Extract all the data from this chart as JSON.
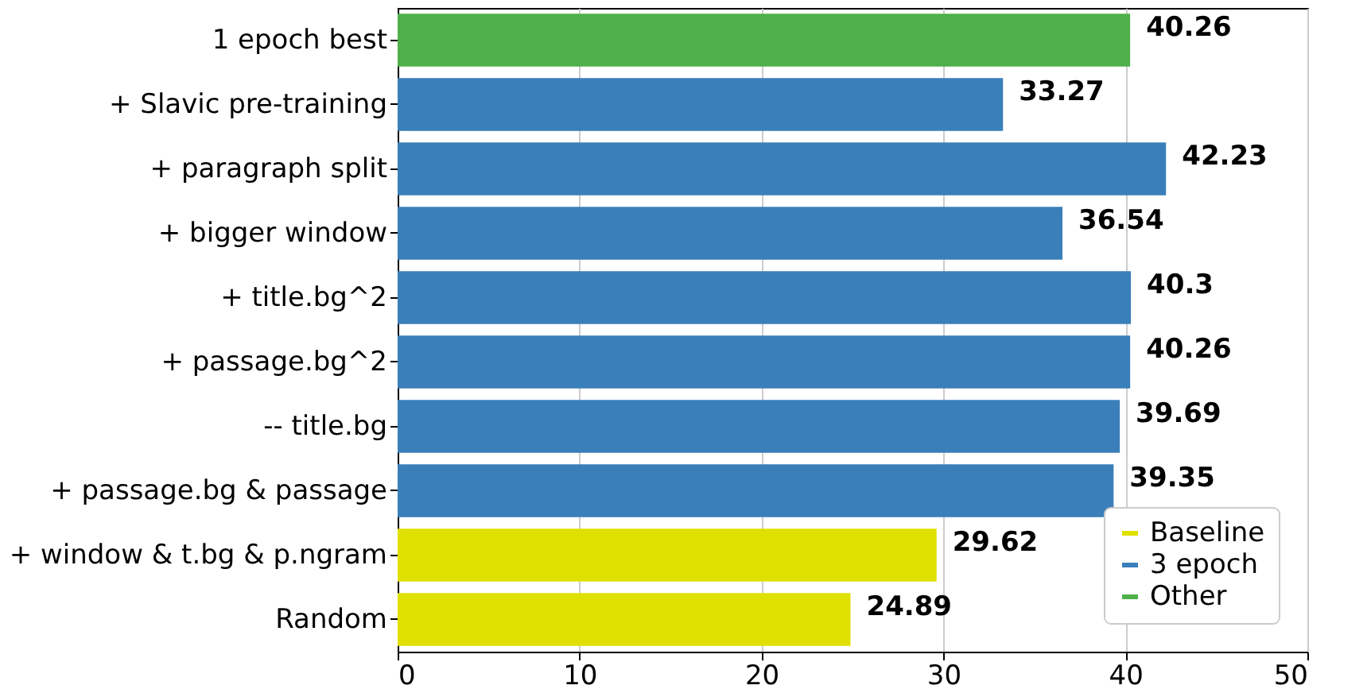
{
  "chart_data": {
    "type": "bar",
    "orientation": "horizontal",
    "categories": [
      "1 epoch best",
      "+ Slavic pre-training",
      "+ paragraph split",
      "+ bigger window",
      "+ title.bg^2 ",
      "+ passage.bg^2",
      "-- title.bg",
      "+ passage.bg & passage",
      "+ window & t.bg & p.ngram",
      "Random"
    ],
    "series": [
      {
        "name": "Baseline",
        "color": "#e0e000",
        "values": [
          null,
          null,
          null,
          null,
          null,
          null,
          null,
          null,
          29.62,
          24.89
        ]
      },
      {
        "name": "3 epoch",
        "color": "#3a7fba",
        "values": [
          null,
          33.27,
          42.23,
          36.54,
          40.3,
          40.26,
          39.69,
          39.35,
          null,
          null
        ]
      },
      {
        "name": "Other",
        "color": "#4fb04a",
        "values": [
          40.26,
          null,
          null,
          null,
          null,
          null,
          null,
          null,
          null,
          null
        ]
      }
    ],
    "xlim": [
      0,
      50
    ],
    "xticks": [
      0,
      10,
      20,
      30,
      40,
      50
    ],
    "grid": "x",
    "legend": "bottom right",
    "data_labels": true
  }
}
